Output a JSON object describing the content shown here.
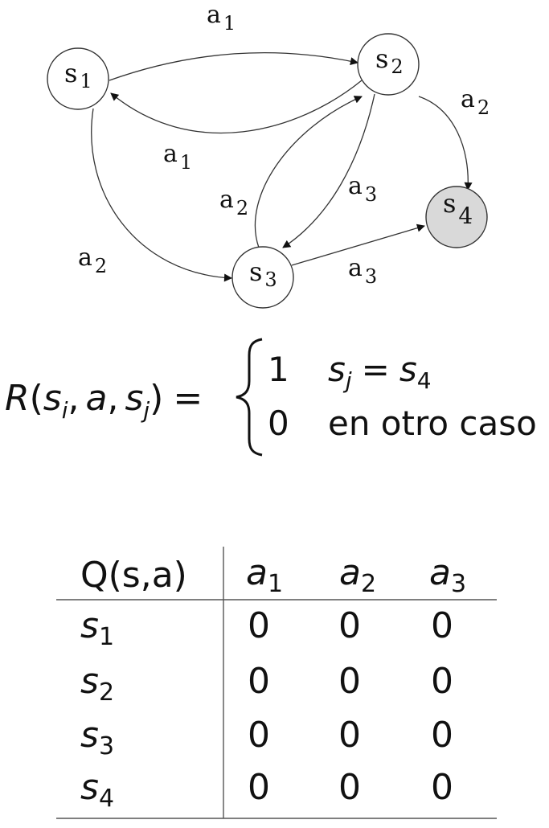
{
  "graph": {
    "nodes": [
      {
        "id": "s1",
        "base": "s",
        "sub": "1"
      },
      {
        "id": "s2",
        "base": "s",
        "sub": "2"
      },
      {
        "id": "s3",
        "base": "s",
        "sub": "3"
      },
      {
        "id": "s4",
        "base": "s",
        "sub": "4",
        "terminal": true
      }
    ],
    "edges": [
      {
        "from": "s1",
        "to": "s2",
        "base": "a",
        "sub": "1"
      },
      {
        "from": "s2",
        "to": "s1",
        "base": "a",
        "sub": "1"
      },
      {
        "from": "s2",
        "to": "s4",
        "base": "a",
        "sub": "2"
      },
      {
        "from": "s1",
        "to": "s3",
        "base": "a",
        "sub": "2"
      },
      {
        "from": "s3",
        "to": "s2",
        "base": "a",
        "sub": "2"
      },
      {
        "from": "s2",
        "to": "s3",
        "base": "a",
        "sub": "3"
      },
      {
        "from": "s3",
        "to": "s4",
        "base": "a",
        "sub": "3"
      }
    ]
  },
  "reward": {
    "lhs": {
      "fn": "R",
      "open": "(",
      "s": "s",
      "i": "i",
      "comma1": ",",
      "a": "a",
      "comma2": ",",
      "j": "j",
      "close": ")",
      "eq": "="
    },
    "case1": {
      "value": "1",
      "s": "s",
      "j": "j",
      "eq": "=",
      "s4": "s",
      "four": "4"
    },
    "case2": {
      "value": "0",
      "text": "en otro caso"
    }
  },
  "qtable": {
    "corner": "Q(s,a)",
    "columns": [
      {
        "base": "a",
        "sub": "1"
      },
      {
        "base": "a",
        "sub": "2"
      },
      {
        "base": "a",
        "sub": "3"
      }
    ],
    "rows": [
      {
        "base": "s",
        "sub": "1",
        "values": [
          "0",
          "0",
          "0"
        ]
      },
      {
        "base": "s",
        "sub": "2",
        "values": [
          "0",
          "0",
          "0"
        ]
      },
      {
        "base": "s",
        "sub": "3",
        "values": [
          "0",
          "0",
          "0"
        ]
      },
      {
        "base": "s",
        "sub": "4",
        "values": [
          "0",
          "0",
          "0"
        ]
      }
    ]
  }
}
